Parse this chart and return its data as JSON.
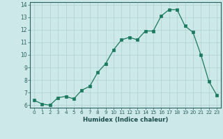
{
  "x": [
    0,
    1,
    2,
    3,
    4,
    5,
    6,
    7,
    8,
    9,
    10,
    11,
    12,
    13,
    14,
    15,
    16,
    17,
    18,
    19,
    20,
    21,
    22,
    23
  ],
  "y": [
    6.4,
    6.1,
    6.0,
    6.6,
    6.7,
    6.5,
    7.2,
    7.5,
    8.6,
    9.3,
    10.4,
    11.2,
    11.4,
    11.2,
    11.9,
    11.9,
    13.1,
    13.6,
    13.6,
    12.3,
    11.8,
    10.0,
    7.9,
    6.8
  ],
  "xlabel": "Humidex (Indice chaleur)",
  "ylim": [
    5.8,
    14.2
  ],
  "xlim": [
    -0.5,
    23.5
  ],
  "yticks": [
    6,
    7,
    8,
    9,
    10,
    11,
    12,
    13,
    14
  ],
  "xticks": [
    0,
    1,
    2,
    3,
    4,
    5,
    6,
    7,
    8,
    9,
    10,
    11,
    12,
    13,
    14,
    15,
    16,
    17,
    18,
    19,
    20,
    21,
    22,
    23
  ],
  "line_color": "#1a7a5e",
  "marker_color": "#1a7a5e",
  "bg_color": "#cce8e8",
  "grid_color": "#b0d0d0",
  "bottom_bar_color": "#2a6060"
}
